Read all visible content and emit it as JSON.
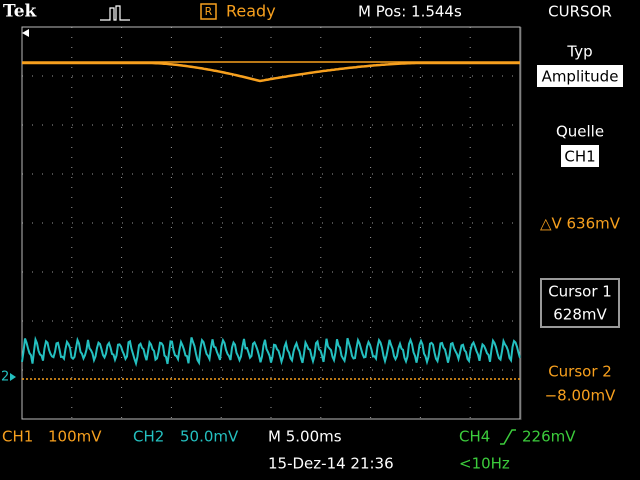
{
  "header": {
    "brand": "Tek",
    "status_icon": "R",
    "status": "Ready",
    "position": "M Pos: 1.544s",
    "menu": "CURSOR"
  },
  "side_menu": {
    "type_label": "Typ",
    "type_value": "Amplitude",
    "source_label": "Quelle",
    "source_value": "CH1",
    "delta": "△V 636mV",
    "cursor1_label": "Cursor 1",
    "cursor1_value": "628mV",
    "cursor2_label": "Cursor 2",
    "cursor2_value": "−8.00mV"
  },
  "screen": {
    "ch2_marker": "2"
  },
  "footer": {
    "ch1": "CH1",
    "ch1_scale": "100mV",
    "ch2": "CH2",
    "ch2_scale": "50.0mV",
    "timebase": "M 5.00ms",
    "trigger_source": "CH4",
    "trigger_level": "226mV",
    "datetime": "15-Dez-14 21:36",
    "frequency": "<10Hz"
  }
}
